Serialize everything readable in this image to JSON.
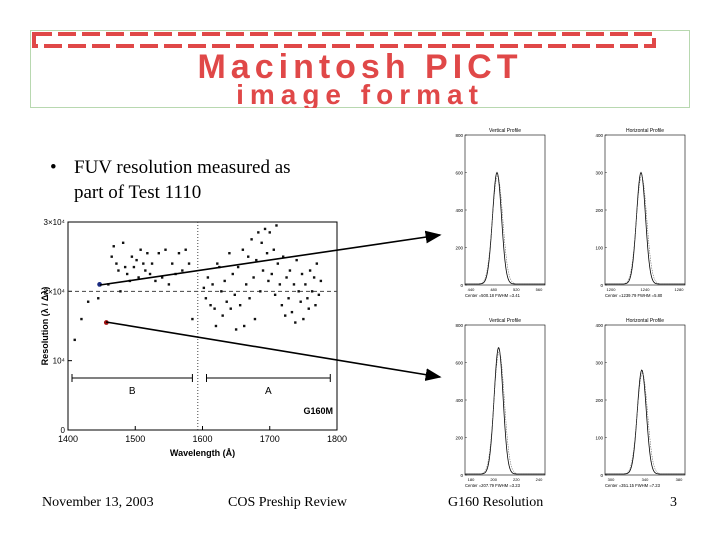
{
  "banner": {
    "line_top": "Macintosh PICT",
    "line_bottom": "image format",
    "color": "#e04848"
  },
  "bullet": {
    "glyph": "•",
    "line1": "FUV resolution measured as",
    "line2": "part of Test 1110"
  },
  "footer": {
    "date": "November 13, 2003",
    "event": "COS Preship Review",
    "topic": "G160 Resolution",
    "page": "3"
  },
  "chart_data": [
    {
      "type": "scatter",
      "title": "",
      "xlabel": "Wavelength (Å)",
      "ylabel": "Resolution (λ / Δλ)",
      "xlim": [
        1400,
        1800
      ],
      "ylim": [
        0,
        30000
      ],
      "xticks": [
        "1400",
        "1500",
        "1600",
        "1700",
        "1800"
      ],
      "yticks": [
        "0",
        "10⁴",
        "2×10⁴",
        "3×10⁴"
      ],
      "annotation": "G160M",
      "segments": [
        {
          "label": "B",
          "x": [
            1400,
            1585
          ]
        },
        {
          "label": "A",
          "x": [
            1600,
            1790
          ]
        }
      ],
      "reference_line_y": 20000,
      "divider_x": 1593,
      "highlighted_points": [
        {
          "x": 1447,
          "y": 21000,
          "color": "#1a2a80"
        },
        {
          "x": 1457,
          "y": 15500,
          "color": "#a01010"
        }
      ],
      "points": [
        [
          1410,
          13000
        ],
        [
          1420,
          16000
        ],
        [
          1430,
          18500
        ],
        [
          1445,
          19000
        ],
        [
          1460,
          21000
        ],
        [
          1465,
          25000
        ],
        [
          1468,
          26500
        ],
        [
          1472,
          24000
        ],
        [
          1475,
          23000
        ],
        [
          1478,
          20000
        ],
        [
          1482,
          27000
        ],
        [
          1485,
          23500
        ],
        [
          1488,
          22500
        ],
        [
          1492,
          21500
        ],
        [
          1495,
          25000
        ],
        [
          1498,
          23500
        ],
        [
          1502,
          24500
        ],
        [
          1505,
          22000
        ],
        [
          1508,
          26000
        ],
        [
          1512,
          24000
        ],
        [
          1515,
          23000
        ],
        [
          1518,
          25500
        ],
        [
          1522,
          22500
        ],
        [
          1525,
          24000
        ],
        [
          1530,
          21500
        ],
        [
          1535,
          25500
        ],
        [
          1540,
          22000
        ],
        [
          1545,
          26000
        ],
        [
          1550,
          21000
        ],
        [
          1555,
          24000
        ],
        [
          1560,
          22500
        ],
        [
          1565,
          25500
        ],
        [
          1570,
          23000
        ],
        [
          1575,
          26000
        ],
        [
          1580,
          24000
        ],
        [
          1585,
          16000
        ],
        [
          1602,
          20500
        ],
        [
          1605,
          19000
        ],
        [
          1608,
          22000
        ],
        [
          1612,
          18000
        ],
        [
          1615,
          21000
        ],
        [
          1618,
          17500
        ],
        [
          1620,
          15000
        ],
        [
          1622,
          24000
        ],
        [
          1625,
          23500
        ],
        [
          1628,
          20000
        ],
        [
          1630,
          16500
        ],
        [
          1633,
          21500
        ],
        [
          1636,
          18500
        ],
        [
          1640,
          25500
        ],
        [
          1642,
          17500
        ],
        [
          1645,
          22500
        ],
        [
          1648,
          19500
        ],
        [
          1650,
          14500
        ],
        [
          1653,
          23500
        ],
        [
          1656,
          18000
        ],
        [
          1660,
          26000
        ],
        [
          1662,
          15000
        ],
        [
          1665,
          21000
        ],
        [
          1668,
          25000
        ],
        [
          1670,
          19000
        ],
        [
          1673,
          27500
        ],
        [
          1676,
          22000
        ],
        [
          1678,
          16000
        ],
        [
          1680,
          24500
        ],
        [
          1683,
          28500
        ],
        [
          1686,
          20000
        ],
        [
          1688,
          27000
        ],
        [
          1690,
          23000
        ],
        [
          1693,
          29000
        ],
        [
          1696,
          25500
        ],
        [
          1698,
          21500
        ],
        [
          1700,
          28500
        ],
        [
          1703,
          22500
        ],
        [
          1706,
          26000
        ],
        [
          1708,
          19500
        ],
        [
          1710,
          29500
        ],
        [
          1712,
          24000
        ],
        [
          1715,
          21000
        ],
        [
          1718,
          18000
        ],
        [
          1720,
          25000
        ],
        [
          1723,
          16500
        ],
        [
          1725,
          22000
        ],
        [
          1728,
          19000
        ],
        [
          1730,
          23000
        ],
        [
          1733,
          17000
        ],
        [
          1736,
          21000
        ],
        [
          1738,
          15500
        ],
        [
          1740,
          24500
        ],
        [
          1743,
          20000
        ],
        [
          1746,
          18500
        ],
        [
          1748,
          22500
        ],
        [
          1750,
          16000
        ],
        [
          1753,
          21000
        ],
        [
          1756,
          19000
        ],
        [
          1758,
          17500
        ],
        [
          1760,
          23000
        ],
        [
          1763,
          20000
        ],
        [
          1766,
          22000
        ],
        [
          1768,
          18000
        ],
        [
          1770,
          24000
        ],
        [
          1773,
          19500
        ],
        [
          1776,
          21500
        ]
      ]
    },
    {
      "type": "line",
      "title": "Vertical Profile",
      "caption": "Center =500.18 FWHM =3.41",
      "xticks": [
        "440",
        "480",
        "520",
        "560"
      ],
      "yticks": [
        "0",
        "200",
        "400",
        "600",
        "800"
      ],
      "peak_x_fraction": 0.4,
      "ylim": [
        0,
        800
      ],
      "peak_height": 600
    },
    {
      "type": "line",
      "title": "Horizontal Profile",
      "caption": "Center =1239.79 FWHM =5.80",
      "xticks": [
        "1200",
        "1240",
        "1280"
      ],
      "yticks": [
        "0",
        "100",
        "200",
        "300",
        "400"
      ],
      "peak_x_fraction": 0.45,
      "ylim": [
        0,
        400
      ],
      "peak_height": 300
    },
    {
      "type": "line",
      "title": "Vertical Profile",
      "caption": "Center =207.79 FWHM =3.23",
      "xticks": [
        "180",
        "200",
        "220",
        "240"
      ],
      "yticks": [
        "0",
        "200",
        "400",
        "600",
        "800"
      ],
      "peak_x_fraction": 0.42,
      "ylim": [
        0,
        800
      ],
      "peak_height": 680
    },
    {
      "type": "line",
      "title": "Horizontal Profile",
      "caption": "Center =351.15 FWHM =7.23",
      "xticks": [
        "300",
        "340",
        "380"
      ],
      "yticks": [
        "0",
        "100",
        "200",
        "300",
        "400"
      ],
      "peak_x_fraction": 0.46,
      "ylim": [
        0,
        400
      ],
      "peak_height": 280
    }
  ]
}
